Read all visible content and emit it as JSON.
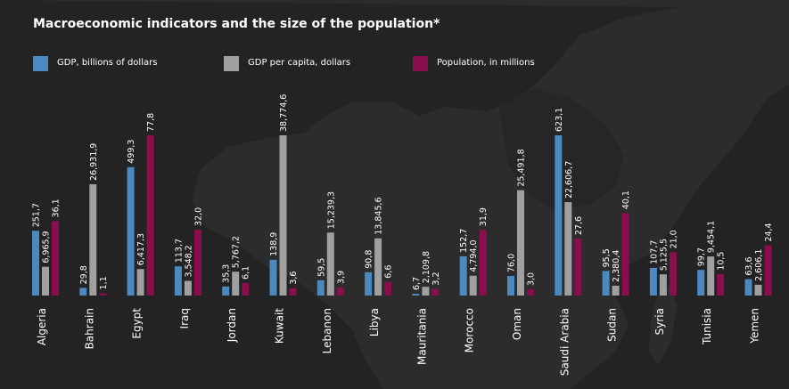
{
  "title": "Macroeconomic indicators and the size of the population*",
  "legend": [
    {
      "label": "GDP, billions of dollars",
      "color": "#4a8ac0"
    },
    {
      "label": "GDP per capita, dollars",
      "color": "#a0a0a0"
    },
    {
      "label": "Population, in millions",
      "color": "#8a0e4e"
    }
  ],
  "chart_data": {
    "type": "bar",
    "title": "Macroeconomic indicators and the size of the population*",
    "categories": [
      "Algeria",
      "Bahrain",
      "Egypt",
      "Iraq",
      "Jordan",
      "Kuwait",
      "Lebanon",
      "Libya",
      "Mauritania",
      "Morocco",
      "Oman",
      "Saudi Arabia",
      "Sudan",
      "Syria",
      "Tunisia",
      "Yemen"
    ],
    "series": [
      {
        "name": "GDP, billions of dollars",
        "color": "#4a8ac0",
        "values": [
          251.7,
          29.8,
          499.3,
          113.7,
          35.3,
          138.9,
          59.5,
          90.8,
          6.7,
          152.7,
          76.0,
          623.1,
          95.5,
          107.7,
          99.7,
          63.6
        ],
        "labels": [
          "251,7",
          "29,8",
          "499,3",
          "113,7",
          "35,3",
          "138,9",
          "59,5",
          "90,8",
          "6,7",
          "152,7",
          "76,0",
          "623,1",
          "95,5",
          "107,7",
          "99,7",
          "63,6"
        ]
      },
      {
        "name": "GDP per capita, dollars",
        "color": "#a0a0a0",
        "values": [
          6965.9,
          26931.9,
          6417.3,
          3548.2,
          5767.2,
          38774.6,
          15239.3,
          13845.6,
          2109.8,
          4794.0,
          25491.8,
          22606.7,
          2380.4,
          5125.5,
          9454.1,
          2606.1
        ],
        "labels": [
          "6,965,9",
          "26,931,9",
          "6,417,3",
          "3,548,2",
          "5,767,2",
          "38,774,6",
          "15,239,3",
          "13,845,6",
          "2,109,8",
          "4,794,0",
          "25,491,8",
          "22,606,7",
          "2,380,4",
          "5,125,5",
          "9,454,1",
          "2,606,1"
        ]
      },
      {
        "name": "Population, in millions",
        "color": "#8a0e4e",
        "values": [
          36.1,
          1.1,
          77.8,
          32.0,
          6.1,
          3.6,
          3.9,
          6.6,
          3.2,
          31.9,
          3.0,
          27.6,
          40.1,
          21.0,
          10.5,
          24.4
        ],
        "labels": [
          "36,1",
          "1,1",
          "77,8",
          "32,0",
          "6,1",
          "3,6",
          "3,9",
          "6,6",
          "3,2",
          "31,9",
          "3,0",
          "27,6",
          "40,1",
          "21,0",
          "10,5",
          "24,4"
        ]
      }
    ],
    "scales": {
      "gdp_max": 623.1,
      "gdp_per_capita_max": 38774.6,
      "population_max": 77.8
    },
    "grid": false,
    "legend_position": "top"
  }
}
